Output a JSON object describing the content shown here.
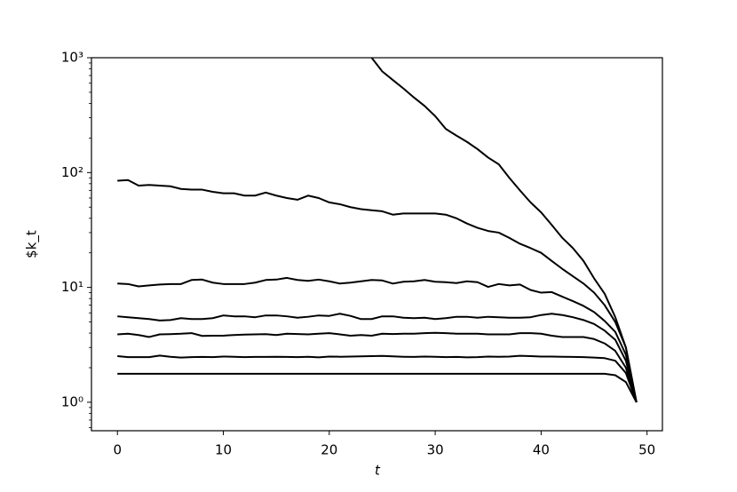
{
  "chart_data": {
    "type": "line",
    "ylabel": "$k_t",
    "xlabel": "t",
    "x": [
      0,
      1,
      2,
      3,
      4,
      5,
      6,
      7,
      8,
      9,
      10,
      11,
      12,
      13,
      14,
      15,
      16,
      17,
      18,
      19,
      20,
      21,
      22,
      23,
      24,
      25,
      26,
      27,
      28,
      29,
      30,
      31,
      32,
      33,
      34,
      35,
      36,
      37,
      38,
      39,
      40,
      41,
      42,
      43,
      44,
      45,
      46,
      47,
      48,
      49
    ],
    "series": [
      {
        "color": "#000000",
        "values": [
          1.77,
          1.77,
          1.77,
          1.77,
          1.77,
          1.77,
          1.77,
          1.77,
          1.77,
          1.77,
          1.77,
          1.77,
          1.77,
          1.77,
          1.77,
          1.77,
          1.77,
          1.77,
          1.77,
          1.77,
          1.77,
          1.77,
          1.77,
          1.77,
          1.77,
          1.77,
          1.77,
          1.77,
          1.77,
          1.77,
          1.77,
          1.77,
          1.77,
          1.77,
          1.77,
          1.77,
          1.77,
          1.77,
          1.77,
          1.77,
          1.77,
          1.77,
          1.77,
          1.77,
          1.77,
          1.77,
          1.77,
          1.72,
          1.5,
          1.0
        ]
      },
      {
        "color": "#000000",
        "values": [
          2.52,
          2.47,
          2.47,
          2.47,
          2.55,
          2.49,
          2.45,
          2.47,
          2.48,
          2.47,
          2.5,
          2.49,
          2.47,
          2.48,
          2.48,
          2.49,
          2.48,
          2.47,
          2.49,
          2.46,
          2.5,
          2.49,
          2.5,
          2.51,
          2.52,
          2.53,
          2.51,
          2.49,
          2.48,
          2.5,
          2.49,
          2.47,
          2.48,
          2.46,
          2.47,
          2.5,
          2.49,
          2.5,
          2.54,
          2.52,
          2.5,
          2.5,
          2.49,
          2.48,
          2.47,
          2.45,
          2.42,
          2.3,
          1.8,
          1.0
        ]
      },
      {
        "color": "#000000",
        "values": [
          3.9,
          3.95,
          3.85,
          3.7,
          3.9,
          3.92,
          3.95,
          4.0,
          3.78,
          3.8,
          3.8,
          3.85,
          3.88,
          3.9,
          3.92,
          3.85,
          3.95,
          3.93,
          3.9,
          3.95,
          4.0,
          3.9,
          3.8,
          3.85,
          3.8,
          3.95,
          3.93,
          3.95,
          3.95,
          4.0,
          4.02,
          4.0,
          3.95,
          3.95,
          3.95,
          3.9,
          3.9,
          3.9,
          4.0,
          4.0,
          3.95,
          3.8,
          3.7,
          3.7,
          3.7,
          3.55,
          3.25,
          2.8,
          2.0,
          1.0
        ]
      },
      {
        "color": "#000000",
        "values": [
          5.6,
          5.5,
          5.4,
          5.3,
          5.15,
          5.2,
          5.4,
          5.3,
          5.3,
          5.4,
          5.7,
          5.6,
          5.6,
          5.5,
          5.7,
          5.7,
          5.6,
          5.45,
          5.55,
          5.7,
          5.65,
          5.9,
          5.65,
          5.3,
          5.3,
          5.6,
          5.6,
          5.45,
          5.4,
          5.45,
          5.3,
          5.4,
          5.55,
          5.55,
          5.45,
          5.55,
          5.5,
          5.45,
          5.45,
          5.5,
          5.75,
          5.9,
          5.75,
          5.5,
          5.2,
          4.8,
          4.2,
          3.5,
          2.3,
          1.0
        ]
      },
      {
        "color": "#000000",
        "values": [
          10.8,
          10.7,
          10.2,
          10.4,
          10.6,
          10.7,
          10.7,
          11.6,
          11.7,
          11.0,
          10.7,
          10.7,
          10.7,
          11.0,
          11.6,
          11.7,
          12.1,
          11.6,
          11.4,
          11.7,
          11.3,
          10.8,
          11.0,
          11.3,
          11.6,
          11.5,
          10.8,
          11.2,
          11.3,
          11.6,
          11.2,
          11.1,
          10.9,
          11.3,
          11.1,
          10.1,
          10.7,
          10.4,
          10.6,
          9.5,
          9.0,
          9.1,
          8.3,
          7.6,
          6.9,
          6.1,
          5.1,
          4.1,
          2.6,
          1.0
        ]
      },
      {
        "color": "#000000",
        "values": [
          85,
          86,
          77,
          78,
          77,
          76,
          72,
          71,
          71,
          68,
          66,
          66,
          63,
          63,
          67,
          63,
          60,
          58,
          63,
          60,
          55,
          53,
          50,
          48,
          47,
          46,
          43,
          44,
          44,
          44,
          44,
          43,
          40,
          36,
          33,
          31,
          30,
          27,
          24,
          22,
          20,
          17,
          14.5,
          12.5,
          10.8,
          9,
          7,
          5,
          3,
          1
        ]
      },
      {
        "color": "#000000",
        "values": [
          null,
          null,
          null,
          null,
          null,
          null,
          null,
          null,
          null,
          null,
          null,
          null,
          null,
          null,
          null,
          null,
          null,
          null,
          null,
          null,
          null,
          null,
          null,
          null,
          1000,
          760,
          640,
          540,
          450,
          380,
          310,
          240,
          210,
          185,
          160,
          135,
          118,
          90,
          70,
          55,
          45,
          35,
          27,
          22,
          17,
          12,
          8.8,
          5.5,
          3,
          1
        ]
      }
    ],
    "xlim": [
      -2.45,
      51.45
    ],
    "xticks": [
      0,
      10,
      20,
      30,
      40,
      50
    ],
    "ylim": [
      0.565,
      1000
    ],
    "log_y": true,
    "yticks": [
      {
        "value": 1,
        "label": "10⁰"
      },
      {
        "value": 10,
        "label": "10¹"
      },
      {
        "value": 100,
        "label": "10²"
      },
      {
        "value": 1000,
        "label": "10³"
      }
    ],
    "yminorticks": [
      0.6,
      0.7,
      0.8,
      0.9,
      2,
      3,
      4,
      5,
      6,
      7,
      8,
      9,
      20,
      30,
      40,
      50,
      60,
      70,
      80,
      90,
      200,
      300,
      400,
      500,
      600,
      700,
      800,
      900
    ]
  }
}
